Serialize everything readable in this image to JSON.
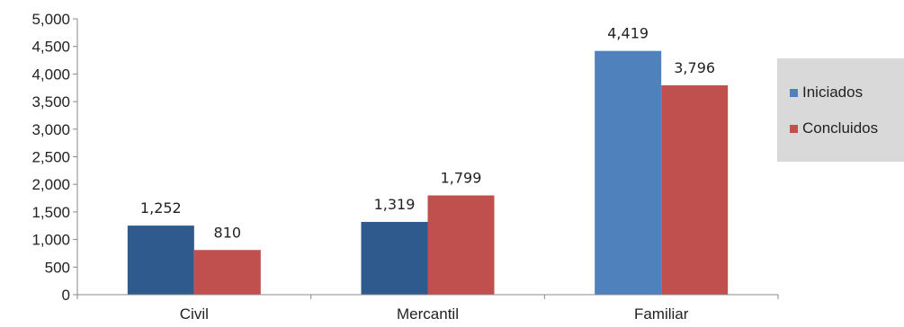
{
  "chart_data": {
    "type": "bar",
    "categories": [
      "Civil",
      "Mercantil",
      "Familiar"
    ],
    "series": [
      {
        "name": "Iniciados",
        "values": [
          1252,
          1319,
          4419
        ],
        "value_labels": [
          "1,252",
          "1,319",
          "4,419"
        ],
        "colors": [
          "#2f5a8e",
          "#2f5a8e",
          "#4f81bd"
        ]
      },
      {
        "name": "Concluidos",
        "values": [
          810,
          1799,
          3796
        ],
        "value_labels": [
          "810",
          "1,799",
          "3,796"
        ],
        "colors": [
          "#c0504d",
          "#c0504d",
          "#c0504d"
        ]
      }
    ],
    "ylim": [
      0,
      5000
    ],
    "yticks": [
      0,
      500,
      1000,
      1500,
      2000,
      2500,
      3000,
      3500,
      4000,
      4500,
      5000
    ],
    "ytick_labels": [
      "0",
      "500",
      "1,000",
      "1,500",
      "2,000",
      "2,500",
      "3,000",
      "3,500",
      "4,000",
      "4,500",
      "5,000"
    ],
    "grid": false,
    "legend_position": "right",
    "title": "",
    "xlabel": "",
    "ylabel": ""
  },
  "legend": {
    "items": [
      {
        "label": "Iniciados",
        "color": "#4f81bd"
      },
      {
        "label": "Concluidos",
        "color": "#c0504d"
      }
    ]
  }
}
